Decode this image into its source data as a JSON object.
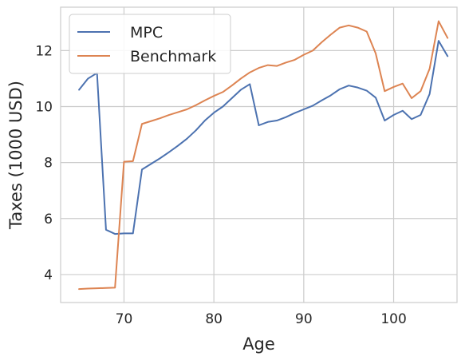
{
  "chart_data": {
    "type": "line",
    "xlabel": "Age",
    "ylabel": "Taxes (1000 USD)",
    "xlim": [
      62.95,
      107.05
    ],
    "ylim": [
      3.0,
      13.55
    ],
    "xticks": [
      70,
      80,
      90,
      100
    ],
    "yticks": [
      4,
      6,
      8,
      10,
      12
    ],
    "grid": true,
    "legend_position": "top-left",
    "series": [
      {
        "name": "MPC",
        "color": "#4c72b0",
        "x": [
          65,
          66,
          67,
          68,
          69,
          70,
          71,
          72,
          73,
          74,
          75,
          76,
          77,
          78,
          79,
          80,
          81,
          82,
          83,
          84,
          85,
          86,
          87,
          88,
          89,
          90,
          91,
          92,
          93,
          94,
          95,
          96,
          97,
          98,
          99,
          100,
          101,
          102,
          103,
          104,
          105,
          106
        ],
        "y": [
          10.6,
          11.0,
          11.2,
          5.6,
          5.45,
          5.47,
          5.47,
          7.75,
          7.95,
          8.15,
          8.37,
          8.6,
          8.85,
          9.15,
          9.5,
          9.78,
          10.0,
          10.3,
          10.6,
          10.8,
          9.33,
          9.45,
          9.5,
          9.62,
          9.77,
          9.9,
          10.03,
          10.22,
          10.4,
          10.62,
          10.75,
          10.68,
          10.57,
          10.32,
          9.5,
          9.7,
          9.85,
          9.55,
          9.7,
          10.45,
          12.35,
          11.8
        ]
      },
      {
        "name": "Benchmark",
        "color": "#dd8452",
        "x": [
          65,
          66,
          67,
          68,
          69,
          70,
          71,
          72,
          73,
          74,
          75,
          76,
          77,
          78,
          79,
          80,
          81,
          82,
          83,
          84,
          85,
          86,
          87,
          88,
          89,
          90,
          91,
          92,
          93,
          94,
          95,
          96,
          97,
          98,
          99,
          100,
          101,
          102,
          103,
          104,
          105,
          106
        ],
        "y": [
          3.48,
          3.5,
          3.51,
          3.52,
          3.53,
          8.03,
          8.05,
          9.38,
          9.48,
          9.58,
          9.7,
          9.8,
          9.9,
          10.05,
          10.22,
          10.38,
          10.52,
          10.75,
          11.0,
          11.22,
          11.38,
          11.48,
          11.45,
          11.57,
          11.67,
          11.85,
          12.0,
          12.3,
          12.57,
          12.82,
          12.9,
          12.82,
          12.68,
          11.9,
          10.55,
          10.7,
          10.82,
          10.3,
          10.55,
          11.35,
          13.05,
          12.45
        ]
      }
    ]
  }
}
